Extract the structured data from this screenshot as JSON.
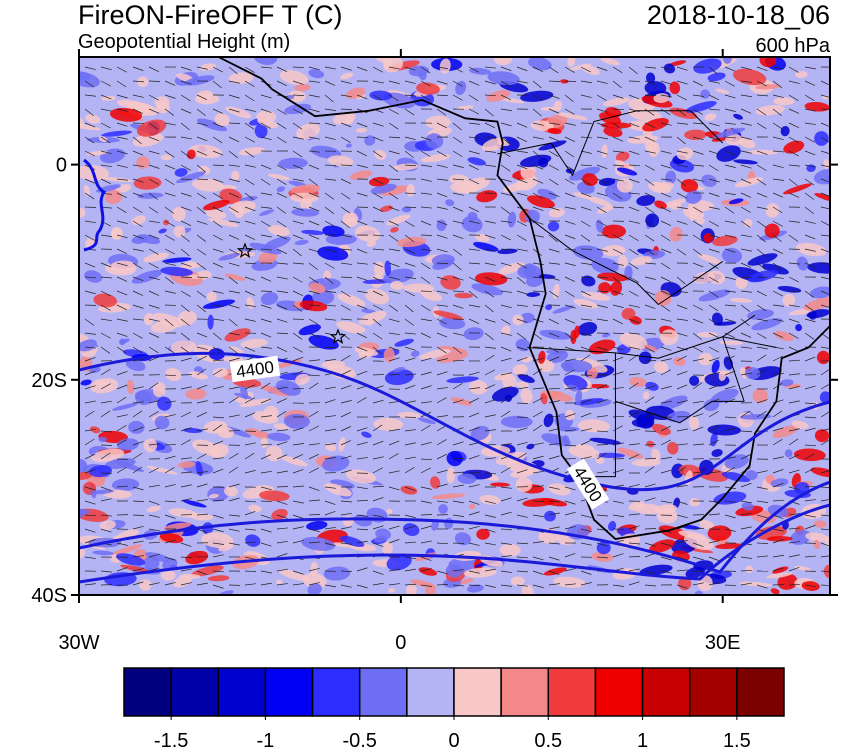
{
  "title": "FireON-FireOFF T (C)",
  "subtitle": "Geopotential Height (m)",
  "date": "2018-10-18_06",
  "level": "600 hPa",
  "map": {
    "lonlim": [
      -30,
      40
    ],
    "latlim": [
      -40,
      10
    ],
    "lon_ticks": [
      {
        "value": -30,
        "label": "30W"
      },
      0,
      {
        "value": 30,
        "label": "30E"
      }
    ],
    "lat_ticks": [
      0,
      {
        "value": -20,
        "label": "20S"
      },
      {
        "value": -40,
        "label": "40S"
      }
    ],
    "contour_labels": [
      "4400",
      "4400"
    ]
  },
  "colorbar": {
    "lim": [
      -1.75,
      1.75
    ],
    "ticks": [
      -1.5,
      -1,
      -0.5,
      0,
      0.5,
      1,
      1.5
    ],
    "colors": [
      "#00007f",
      "#0000a8",
      "#0000cf",
      "#0000f5",
      "#2d2dff",
      "#6e6ef5",
      "#b4b4f5",
      "#f8c8c8",
      "#f48888",
      "#f03c3c",
      "#ee0000",
      "#c80000",
      "#a40000",
      "#7c0000"
    ]
  }
}
